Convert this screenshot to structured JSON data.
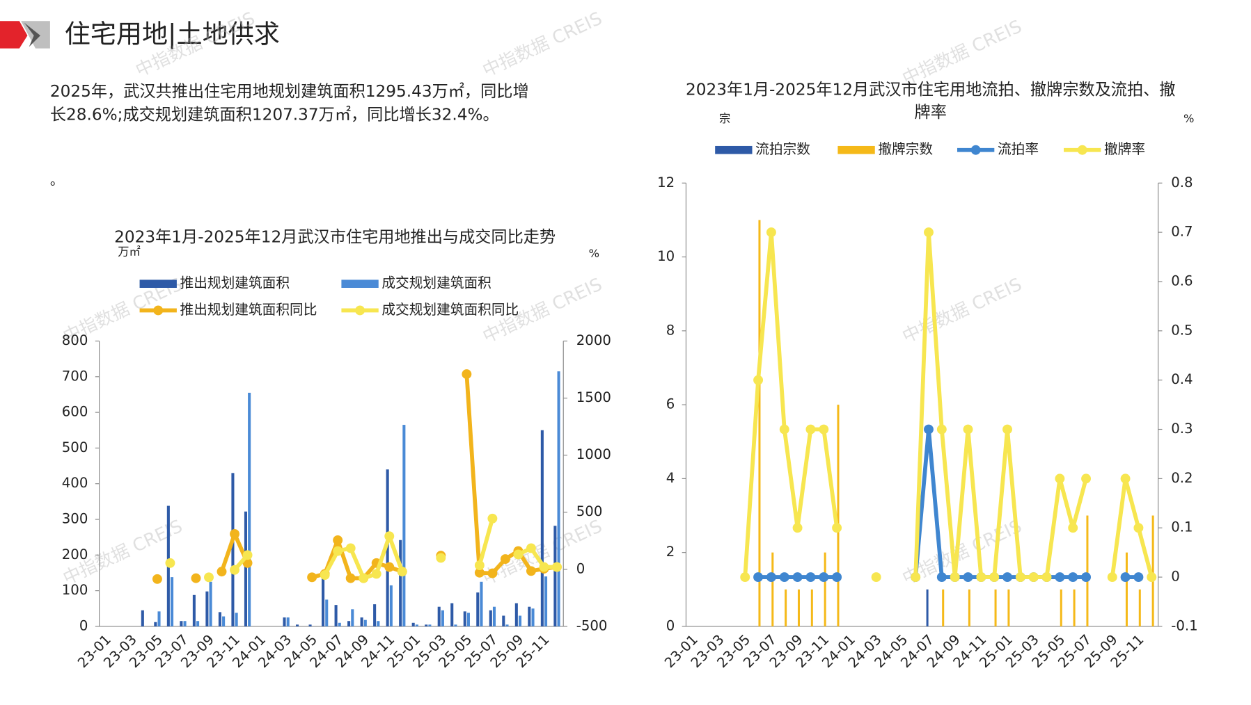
{
  "header": {
    "title": "住宅用地|土地供求"
  },
  "paragraph": [
    "2025年，武汉共推出住宅用地规划建筑面积1295.43万㎡，同比增",
    "长28.6%;成交规划建筑面积1207.37万㎡，同比增长32.4%。"
  ],
  "note": "。",
  "watermark": "中指数据 CREIS",
  "chart_data": [
    {
      "type": "combo",
      "title": [
        "2023年1月-2025年12月武汉市住宅用地推出与成交同比走势"
      ],
      "y_label": "万㎡",
      "y2_label": "%",
      "categories": [
        "23-01",
        null,
        "23-03",
        null,
        "23-05",
        null,
        "23-07",
        null,
        "23-09",
        null,
        "23-11",
        null,
        "24-01",
        null,
        "24-03",
        null,
        "24-05",
        null,
        "24-07",
        null,
        "24-09",
        null,
        "24-11",
        null,
        "25-01",
        null,
        "25-03",
        null,
        "25-05",
        null,
        "25-07",
        null,
        "25-09",
        null,
        "25-11",
        null
      ],
      "ylim": [
        0,
        800
      ],
      "yticks": [
        0,
        100,
        200,
        300,
        400,
        500,
        600,
        700,
        800
      ],
      "y2lim": [
        -500,
        2000
      ],
      "y2ticks": [
        -500,
        0,
        500,
        1000,
        1500,
        2000
      ],
      "series": [
        {
          "name": "推出规划建筑面积",
          "type": "bar",
          "color": "#2e5aa7",
          "values": [
            0,
            0,
            0,
            45,
            12,
            338,
            15,
            88,
            98,
            40,
            430,
            322,
            0,
            0,
            25,
            5,
            5,
            140,
            60,
            15,
            25,
            62,
            440,
            242,
            10,
            5,
            55,
            65,
            42,
            95,
            45,
            30,
            65,
            55,
            550,
            282
          ]
        },
        {
          "name": "成交规划建筑面积",
          "type": "bar",
          "color": "#4a8ad6",
          "values": [
            0,
            0,
            0,
            0,
            42,
            138,
            15,
            15,
            125,
            28,
            38,
            655,
            0,
            0,
            25,
            0,
            0,
            75,
            10,
            48,
            18,
            15,
            115,
            565,
            5,
            5,
            45,
            5,
            38,
            125,
            55,
            5,
            30,
            50,
            140,
            715
          ]
        },
        {
          "name": "推出规划建筑面积同比",
          "type": "line",
          "axis": "y2",
          "color": "#f2b41c",
          "values": [
            null,
            null,
            null,
            null,
            -85,
            null,
            null,
            -78,
            null,
            -20,
            310,
            55,
            null,
            null,
            null,
            null,
            -70,
            -40,
            255,
            -78,
            -78,
            55,
            20,
            -20,
            null,
            null,
            120,
            null,
            1710,
            -30,
            -35,
            90,
            160,
            -15,
            5,
            20
          ]
        },
        {
          "name": "成交规划建筑面积同比",
          "type": "line",
          "axis": "y2",
          "color": "#f7e650",
          "values": [
            null,
            null,
            null,
            null,
            null,
            55,
            null,
            null,
            -70,
            null,
            -5,
            125,
            null,
            null,
            null,
            null,
            null,
            -50,
            160,
            185,
            -78,
            -40,
            290,
            -20,
            null,
            null,
            100,
            null,
            null,
            35,
            445,
            null,
            130,
            185,
            20,
            20
          ]
        }
      ]
    },
    {
      "type": "combo",
      "title": [
        "2023年1月-2025年12月武汉市住宅用地流拍、撤牌宗数及流拍、撤",
        "牌率"
      ],
      "y_label": "宗",
      "y2_label": "%",
      "categories": [
        "23-01",
        null,
        "23-03",
        null,
        "23-05",
        null,
        "23-07",
        null,
        "23-09",
        null,
        "23-11",
        null,
        "24-01",
        null,
        "24-03",
        null,
        "24-05",
        null,
        "24-07",
        null,
        "24-09",
        null,
        "24-11",
        null,
        "25-01",
        null,
        "25-03",
        null,
        "25-05",
        null,
        "25-07",
        null,
        "25-09",
        null,
        "25-11",
        null
      ],
      "ylim": [
        0,
        12
      ],
      "yticks": [
        0,
        2,
        4,
        6,
        8,
        10,
        12
      ],
      "y2lim": [
        -0.1,
        0.8
      ],
      "y2ticks": [
        -0.1,
        0,
        0.1,
        0.2,
        0.3,
        0.4,
        0.5,
        0.6,
        0.7,
        0.8
      ],
      "series": [
        {
          "name": "流拍宗数",
          "type": "bar",
          "color": "#2e5aa7",
          "values": [
            0,
            0,
            0,
            0,
            0,
            0,
            0,
            0,
            0,
            0,
            0,
            0,
            0,
            0,
            0,
            0,
            0,
            0,
            1,
            0,
            0,
            0,
            0,
            0,
            0,
            0,
            0,
            0,
            0,
            0,
            0,
            0,
            0,
            0,
            0,
            0
          ]
        },
        {
          "name": "撤牌宗数",
          "type": "bar",
          "color": "#f5b919",
          "values": [
            0,
            0,
            0,
            0,
            0,
            11,
            2,
            1,
            1,
            1,
            2,
            6,
            0,
            0,
            0,
            0,
            0,
            0,
            0,
            1,
            0,
            1,
            0,
            1,
            1,
            0,
            0,
            0,
            1,
            1,
            3,
            0,
            0,
            2,
            1,
            3
          ]
        },
        {
          "name": "流拍率",
          "type": "line",
          "axis": "y2",
          "color": "#3f86d0",
          "values": [
            null,
            null,
            null,
            null,
            null,
            0,
            0,
            0,
            0,
            0,
            0,
            0,
            null,
            null,
            null,
            null,
            null,
            0,
            0.3,
            0,
            0,
            0,
            0,
            0,
            0,
            0,
            0,
            0,
            0,
            0,
            0,
            null,
            null,
            0,
            0,
            null
          ]
        },
        {
          "name": "撤牌率",
          "type": "line",
          "axis": "y2",
          "color": "#f7e650",
          "values": [
            null,
            null,
            null,
            null,
            0,
            0.4,
            0.7,
            0.3,
            0.1,
            0.3,
            0.3,
            0.1,
            null,
            null,
            0,
            null,
            null,
            0,
            0.7,
            0.3,
            0,
            0.3,
            0,
            0,
            0.3,
            0,
            0,
            0,
            0.2,
            0.1,
            0.2,
            null,
            0,
            0.2,
            0.1,
            0
          ]
        }
      ]
    }
  ]
}
